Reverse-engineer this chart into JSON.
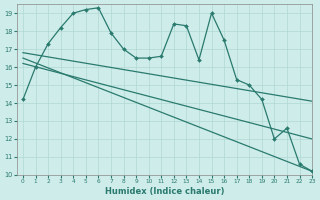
{
  "xlabel": "Humidex (Indice chaleur)",
  "xlim": [
    -0.5,
    23
  ],
  "ylim": [
    10,
    19.5
  ],
  "yticks": [
    10,
    11,
    12,
    13,
    14,
    15,
    16,
    17,
    18,
    19
  ],
  "xticks": [
    0,
    1,
    2,
    3,
    4,
    5,
    6,
    7,
    8,
    9,
    10,
    11,
    12,
    13,
    14,
    15,
    16,
    17,
    18,
    19,
    20,
    21,
    22,
    23
  ],
  "background_color": "#ceecea",
  "grid_color": "#b0d8d4",
  "line_color": "#2a7a6e",
  "line1_x": [
    0,
    1,
    2,
    3,
    4,
    5,
    6,
    7,
    8,
    9,
    10,
    11,
    12,
    13,
    14,
    15,
    16,
    17,
    18,
    19,
    20,
    21,
    22,
    23
  ],
  "line1_y": [
    14.2,
    16.0,
    17.3,
    18.2,
    19.0,
    19.2,
    19.3,
    17.9,
    17.0,
    16.5,
    16.5,
    16.6,
    18.4,
    18.3,
    16.4,
    19.0,
    17.5,
    15.3,
    15.0,
    14.2,
    12.0,
    12.6,
    10.6,
    10.2
  ],
  "line2_x": [
    0,
    23
  ],
  "line2_y": [
    16.8,
    14.1
  ],
  "line3_x": [
    0,
    23
  ],
  "line3_y": [
    16.5,
    10.2
  ],
  "line4_x": [
    0,
    23
  ],
  "line4_y": [
    16.2,
    12.0
  ]
}
